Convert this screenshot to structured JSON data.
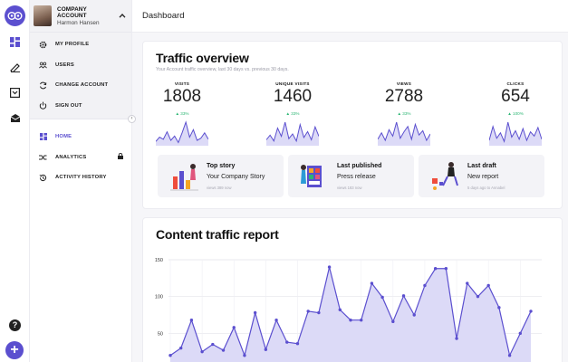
{
  "colors": {
    "accent": "#5b4fcf",
    "accent_fill": "#dcdaf7",
    "positive": "#2bb673"
  },
  "rail": {
    "icons": [
      "logo-owl-icon",
      "dashboard-icon",
      "edit-pen-icon",
      "inbox-icon",
      "mail-open-icon"
    ],
    "help_label": "?",
    "add_label": "+"
  },
  "sidebar": {
    "account": {
      "title": "COMPANY ACCOUNT",
      "name": "Harmon Hansen",
      "toggle": "^"
    },
    "account_menu": [
      {
        "label": "MY PROFILE",
        "icon": "gear-icon"
      },
      {
        "label": "USERS",
        "icon": "users-icon"
      },
      {
        "label": "CHANGE ACCOUNT",
        "icon": "refresh-icon"
      },
      {
        "label": "SIGN OUT",
        "icon": "power-icon"
      }
    ],
    "collapse_label": "‹",
    "nav": [
      {
        "label": "HOME",
        "icon": "grid-icon"
      },
      {
        "label": "ANALYTICS",
        "icon": "shuffle-icon"
      },
      {
        "label": "ACTIVITY HISTORY",
        "icon": "history-icon"
      }
    ]
  },
  "header": {
    "title": "Dashboard"
  },
  "traffic": {
    "title": "Traffic overview",
    "subtitle": "Your Account traffic overview, last 30 days vs. previous 30 days.",
    "stats": [
      {
        "label": "VISITS",
        "value": "1808",
        "change": "▲ 33%"
      },
      {
        "label": "UNIQUE VISITS",
        "value": "1460",
        "change": "▲ 33%"
      },
      {
        "label": "VIEWS",
        "value": "2788",
        "change": "▲ 33%"
      },
      {
        "label": "CLICKS",
        "value": "654",
        "change": "▲ 100%"
      }
    ],
    "sparklines": [
      [
        4,
        8,
        6,
        13,
        5,
        9,
        3,
        12,
        22,
        8,
        15,
        5,
        7,
        12,
        6
      ],
      [
        5,
        9,
        4,
        15,
        8,
        20,
        6,
        10,
        4,
        18,
        7,
        12,
        5,
        16,
        8
      ],
      [
        6,
        12,
        5,
        15,
        9,
        22,
        7,
        13,
        18,
        6,
        20,
        10,
        14,
        5,
        11
      ],
      [
        5,
        18,
        7,
        12,
        4,
        22,
        8,
        14,
        6,
        16,
        5,
        13,
        9,
        17,
        6
      ]
    ],
    "tiles": [
      {
        "title": "Top story",
        "line": "Your Company Story",
        "meta": "views 389 now"
      },
      {
        "title": "Last published",
        "line": "Press release",
        "meta": "views 183 now"
      },
      {
        "title": "Last draft",
        "line": "New report",
        "meta": "5 days ago to Annabel"
      }
    ]
  },
  "report": {
    "title": "Content traffic report"
  },
  "chart_data": {
    "type": "area",
    "title": "Content traffic report",
    "xlabel": "",
    "ylabel": "",
    "ylim": [
      0,
      150
    ],
    "yticks": [
      "150",
      "100",
      "50"
    ],
    "grid": true,
    "values": [
      20,
      30,
      68,
      25,
      35,
      27,
      58,
      20,
      78,
      28,
      68,
      38,
      36,
      80,
      78,
      140,
      82,
      68,
      68,
      118,
      99,
      66,
      101,
      75,
      115,
      138,
      138,
      43,
      118,
      100,
      115,
      85,
      20,
      50,
      80
    ]
  }
}
